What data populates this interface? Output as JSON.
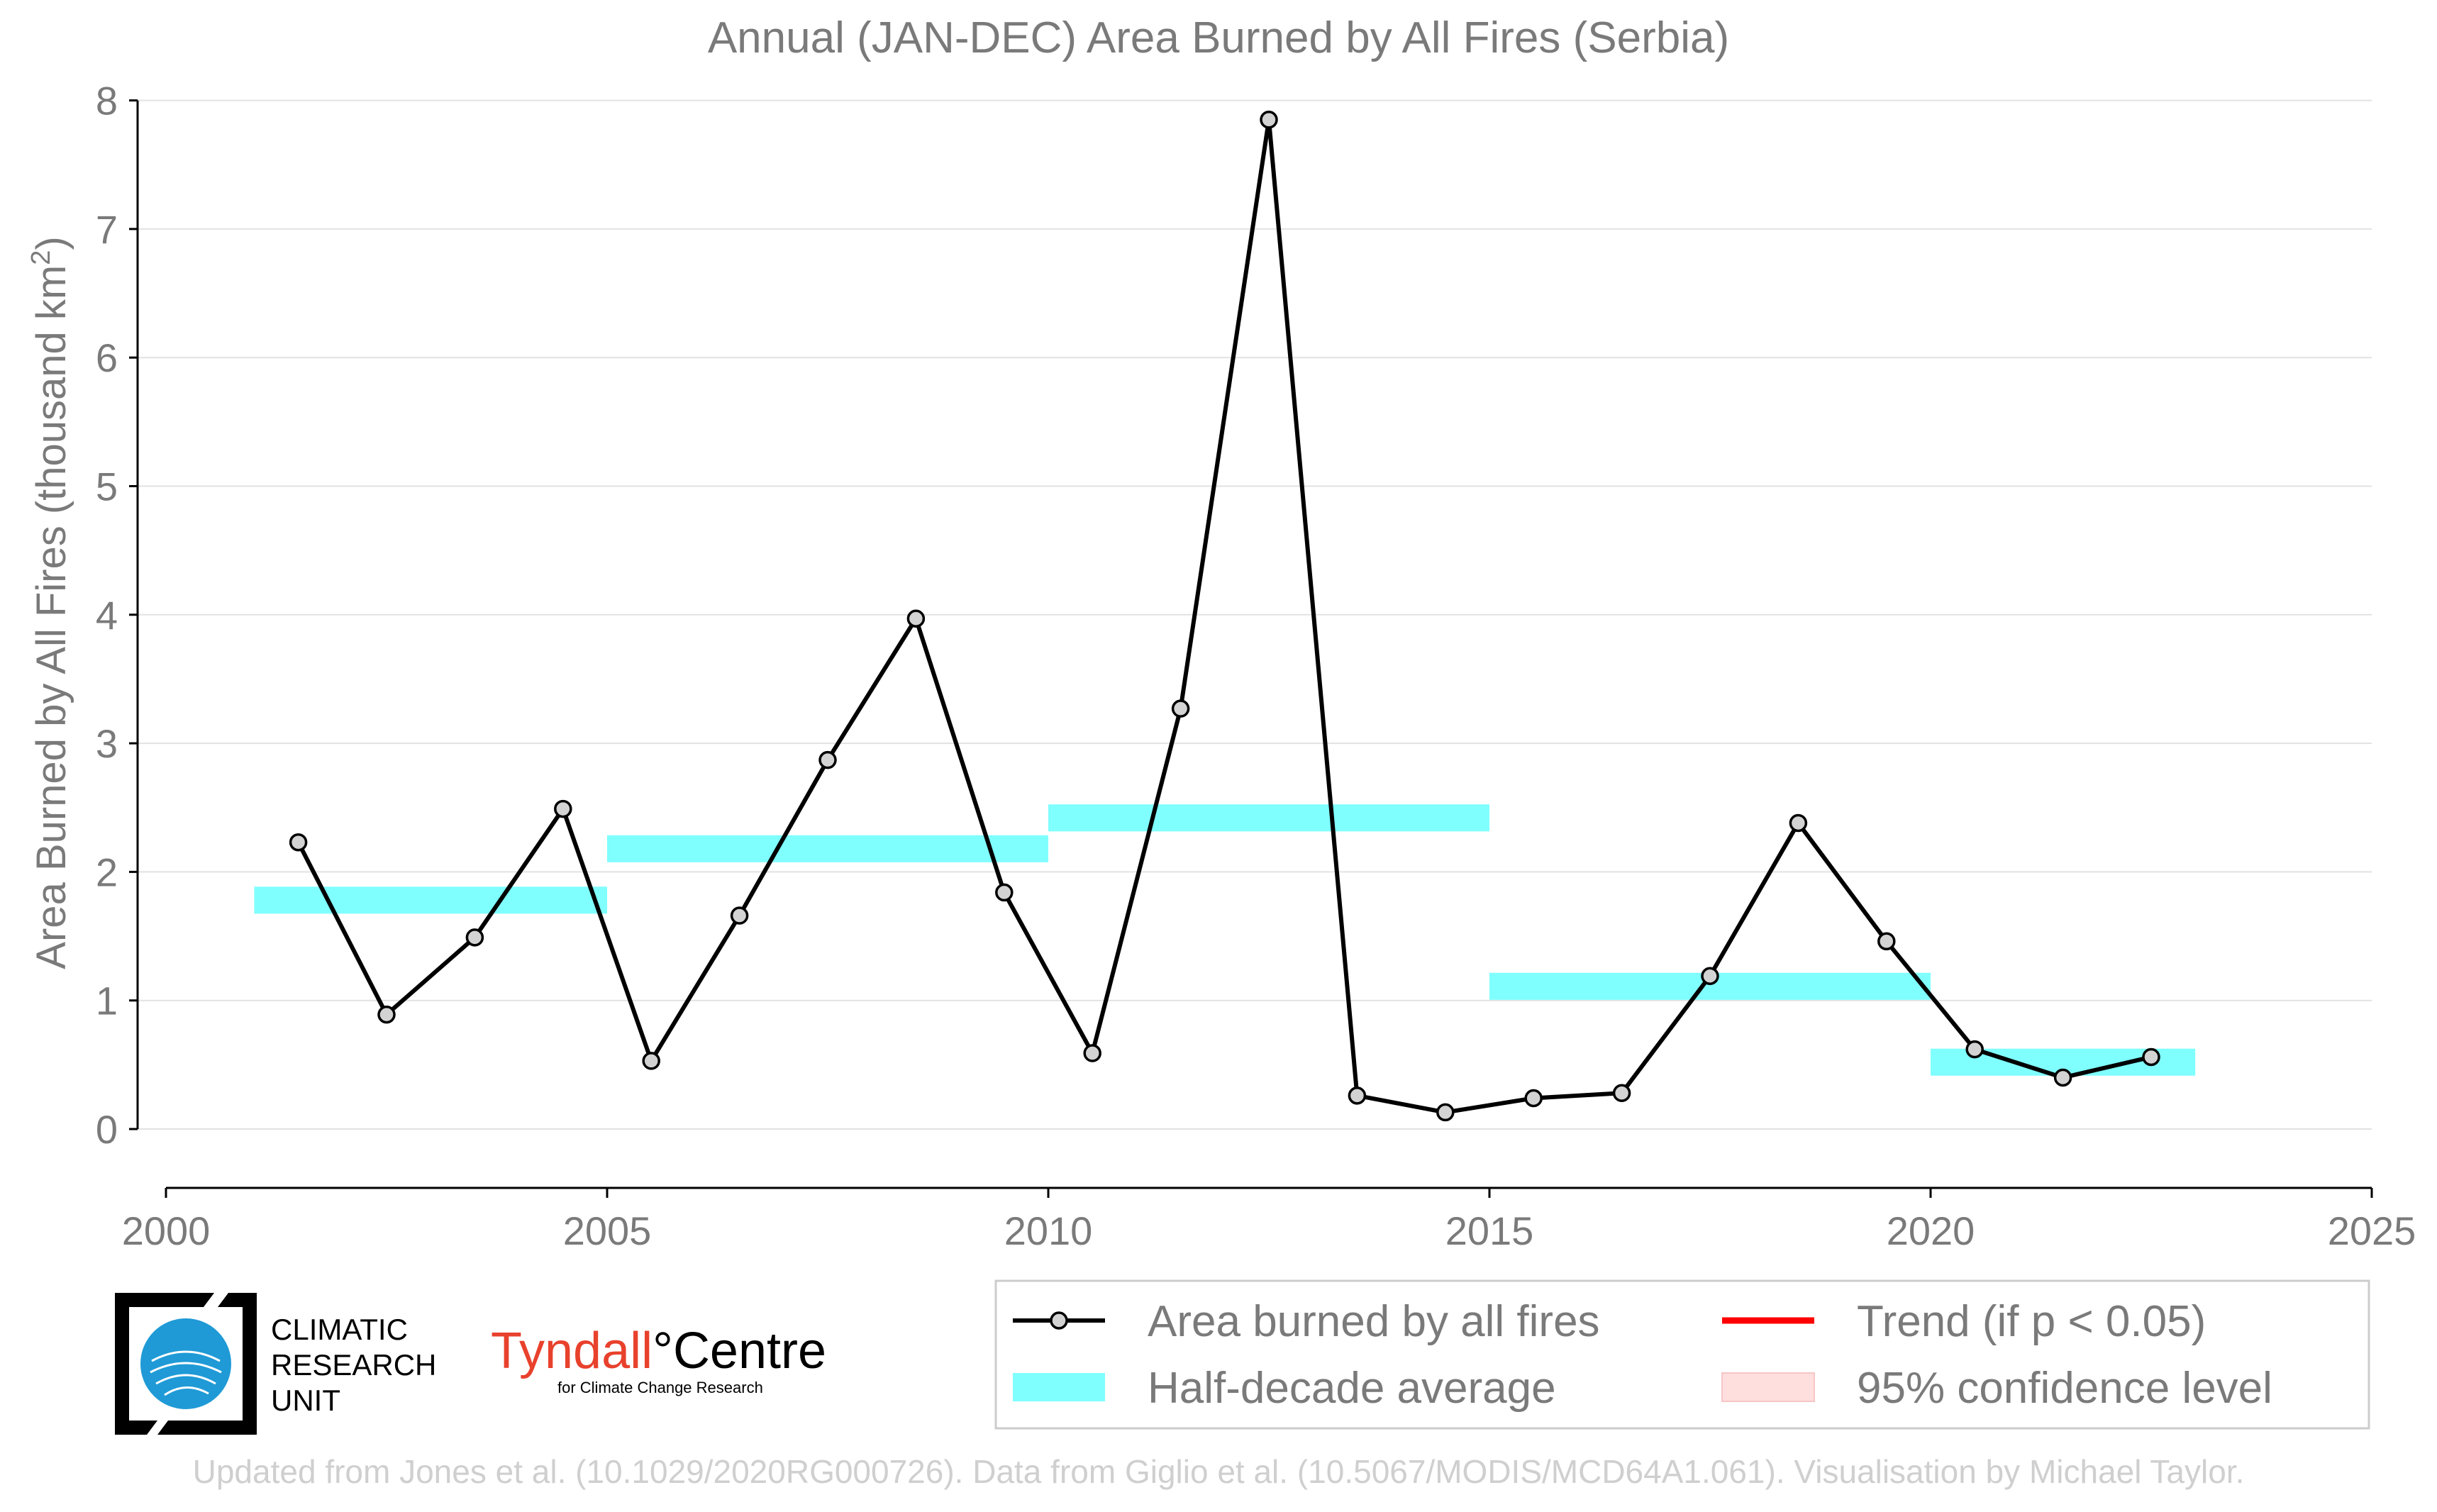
{
  "chart_data": {
    "type": "line",
    "title": "Annual (JAN-DEC) Area Burned by All Fires (Serbia)",
    "ylabel": "Area Burned by All Fires (thousand km²)",
    "xlabel": "",
    "xlim": [
      2000,
      2025
    ],
    "ylim": [
      -0.45,
      8
    ],
    "x_ticks": [
      "2000",
      "2005",
      "2010",
      "2015",
      "2020",
      "2025"
    ],
    "y_ticks": [
      "0",
      "1",
      "2",
      "3",
      "4",
      "5",
      "6",
      "7",
      "8"
    ],
    "grid": "horizontal",
    "series": [
      {
        "name": "Area burned by all fires",
        "color": "#000000",
        "marker_fill": "#d3d3d3",
        "x": [
          2001.5,
          2002.5,
          2003.5,
          2004.5,
          2005.5,
          2006.5,
          2007.5,
          2008.5,
          2009.5,
          2010.5,
          2011.5,
          2012.5,
          2013.5,
          2014.5,
          2015.5,
          2016.5,
          2017.5,
          2018.5,
          2019.5,
          2020.5,
          2021.5,
          2022.5
        ],
        "y": [
          2.23,
          0.89,
          1.49,
          2.49,
          0.53,
          1.66,
          2.87,
          3.97,
          1.84,
          0.59,
          3.27,
          7.85,
          0.26,
          0.13,
          0.24,
          0.28,
          1.19,
          2.38,
          1.46,
          0.62,
          0.4,
          0.56
        ]
      }
    ],
    "half_decade_average": {
      "name": "Half-decade average",
      "color": "#80ffff",
      "bands": [
        {
          "x_start": 2001,
          "x_end": 2005,
          "y": 1.78
        },
        {
          "x_start": 2005,
          "x_end": 2010,
          "y": 2.18
        },
        {
          "x_start": 2010,
          "x_end": 2015,
          "y": 2.42
        },
        {
          "x_start": 2015,
          "x_end": 2020,
          "y": 1.11
        },
        {
          "x_start": 2020,
          "x_end": 2023,
          "y": 0.52
        }
      ]
    },
    "legend": {
      "placement": "bottom-right",
      "entries": [
        {
          "label": "Area burned by all fires",
          "kind": "line-marker",
          "color": "#000000"
        },
        {
          "label": "Trend (if p < 0.05)",
          "kind": "line",
          "color": "#ff0000"
        },
        {
          "label": "Half-decade average",
          "kind": "band",
          "color": "#80ffff"
        },
        {
          "label": "95% confidence level",
          "kind": "band",
          "color": "#ffdede"
        }
      ]
    }
  },
  "logos": {
    "cru_lines": [
      "CLIMATIC",
      "RESEARCH",
      "UNIT"
    ],
    "tyndall_main_a": "Tyndall",
    "tyndall_degree": "°",
    "tyndall_main_b": "Centre",
    "tyndall_sub": "for Climate Change Research"
  },
  "footer": "Updated from Jones et al. (10.1029/2020RG000726). Data from Giglio et al. (10.5067/MODIS/MCD64A1.061). Visualisation by Michael Taylor."
}
